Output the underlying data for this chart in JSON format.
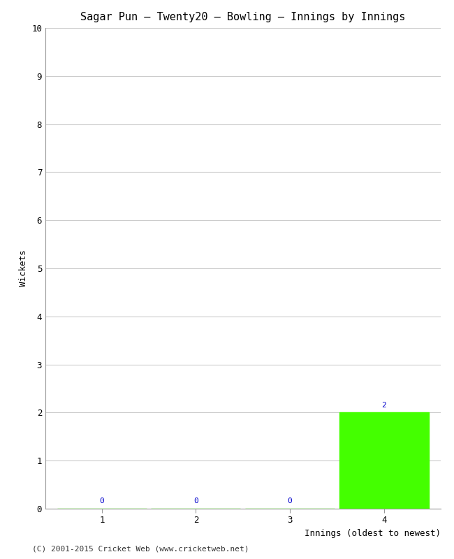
{
  "title": "Sagar Pun – Twenty20 – Bowling – Innings by Innings",
  "xlabel": "Innings (oldest to newest)",
  "ylabel": "Wickets",
  "categories": [
    1,
    2,
    3,
    4
  ],
  "values": [
    0,
    0,
    0,
    2
  ],
  "bar_color": "#44ff00",
  "label_color": "#0000cc",
  "ylim": [
    0,
    10
  ],
  "yticks": [
    0,
    1,
    2,
    3,
    4,
    5,
    6,
    7,
    8,
    9,
    10
  ],
  "background_color": "#ffffff",
  "grid_color": "#cccccc",
  "footer": "(C) 2001-2015 Cricket Web (www.cricketweb.net)",
  "title_fontsize": 11,
  "axis_label_fontsize": 9,
  "tick_fontsize": 9,
  "footer_fontsize": 8,
  "bar_label_fontsize": 8
}
